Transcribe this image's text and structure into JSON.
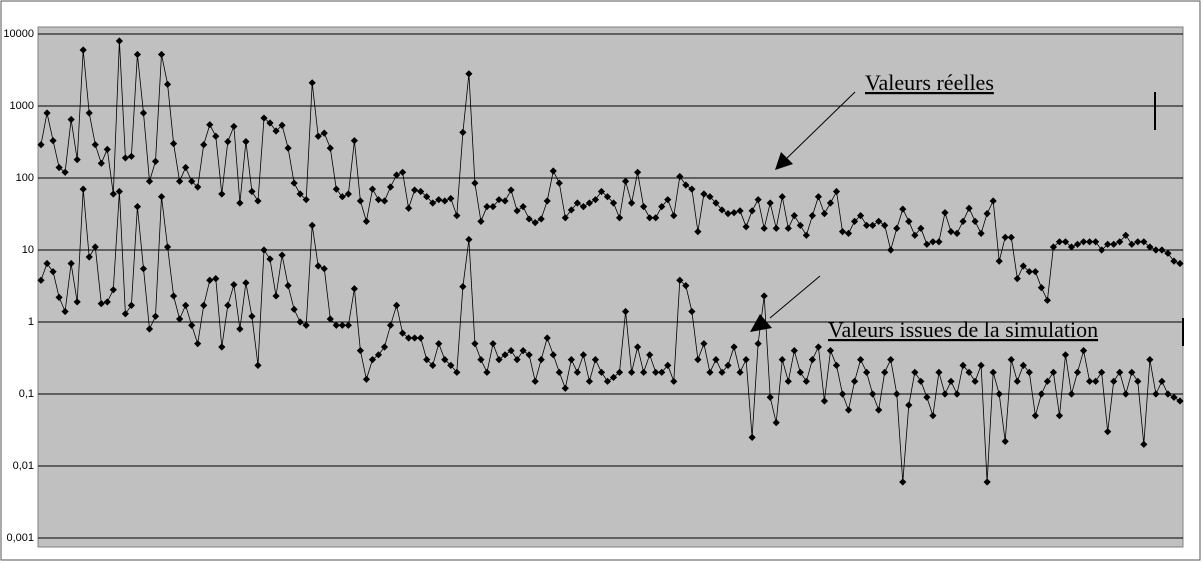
{
  "chart_data": {
    "type": "line",
    "log_scale": true,
    "grid": true,
    "ylim": [
      0.001,
      10000
    ],
    "yticks": [
      10000,
      1000,
      100,
      10,
      1,
      {
        "value": 0.1,
        "label": "0,1"
      },
      {
        "value": 0.01,
        "label": "0,01"
      },
      {
        "value": 0.001,
        "label": "0,001"
      }
    ],
    "annotations": [
      "Valeurs réelles",
      "Valeurs issues de la simulation"
    ],
    "series": [
      {
        "color": "#000000",
        "values": [
          290,
          800,
          330,
          140,
          120,
          650,
          180,
          6000,
          800,
          290,
          160,
          250,
          60,
          8000,
          190,
          200,
          5200,
          800,
          90,
          170,
          5200,
          2000,
          300,
          90,
          140,
          90,
          75,
          290,
          550,
          380,
          60,
          320,
          520,
          45,
          320,
          65,
          48,
          680,
          580,
          450,
          540,
          260,
          85,
          60,
          50,
          2100,
          380,
          420,
          260,
          70,
          55,
          60,
          330,
          48,
          25,
          70,
          50,
          48,
          75,
          110,
          120,
          38,
          68,
          65,
          55,
          45,
          50,
          48,
          52,
          30,
          430,
          2800,
          85,
          25,
          40,
          40,
          50,
          48,
          68,
          35,
          40,
          27,
          24,
          27,
          48,
          125,
          85,
          28,
          36,
          45,
          40,
          45,
          50,
          65,
          55,
          45,
          28,
          90,
          45,
          120,
          40,
          28,
          28,
          40,
          50,
          30,
          105,
          80,
          70,
          18,
          60,
          55,
          45,
          36,
          32,
          33,
          35,
          21,
          35,
          50,
          20,
          45,
          20,
          55,
          20,
          30,
          22,
          16,
          30,
          55,
          32,
          45,
          65,
          18,
          17,
          25,
          30,
          22,
          22,
          25,
          22,
          10,
          20,
          37,
          25,
          16,
          20,
          12,
          13,
          13,
          33,
          18,
          17,
          25,
          38,
          25,
          17,
          32,
          48,
          7,
          15,
          15,
          4,
          6,
          5,
          5,
          3,
          2,
          11,
          13,
          13,
          11,
          12,
          13,
          13,
          13,
          10,
          12,
          12,
          13,
          16,
          12,
          13,
          13,
          11,
          10,
          10,
          9,
          7,
          6.5
        ]
      },
      {
        "color": "#000000",
        "values": [
          3.8,
          6.5,
          5,
          2.2,
          1.4,
          6.5,
          1.9,
          70,
          8,
          11,
          1.8,
          1.9,
          2.8,
          65,
          1.3,
          1.7,
          40,
          5.5,
          0.8,
          1.2,
          55,
          11,
          2.3,
          1.1,
          1.7,
          0.9,
          0.5,
          1.7,
          3.8,
          4,
          0.45,
          1.7,
          3.3,
          0.8,
          3.5,
          1.2,
          0.25,
          10,
          7.5,
          2.3,
          8.5,
          3.2,
          1.5,
          1,
          0.9,
          22,
          6,
          5.5,
          1.1,
          0.9,
          0.9,
          0.9,
          2.9,
          0.4,
          0.16,
          0.3,
          0.35,
          0.45,
          0.9,
          1.7,
          0.7,
          0.6,
          0.6,
          0.6,
          0.3,
          0.25,
          0.5,
          0.3,
          0.25,
          0.2,
          3.1,
          14,
          0.5,
          0.3,
          0.2,
          0.5,
          0.3,
          0.35,
          0.4,
          0.3,
          0.4,
          0.35,
          0.15,
          0.3,
          0.6,
          0.35,
          0.2,
          0.12,
          0.3,
          0.2,
          0.35,
          0.15,
          0.3,
          0.2,
          0.15,
          0.17,
          0.2,
          1.4,
          0.2,
          0.45,
          0.2,
          0.35,
          0.2,
          0.2,
          0.25,
          0.15,
          3.8,
          3.2,
          1.4,
          0.3,
          0.5,
          0.2,
          0.3,
          0.2,
          0.25,
          0.45,
          0.2,
          0.3,
          0.025,
          0.5,
          2.3,
          0.09,
          0.04,
          0.3,
          0.15,
          0.4,
          0.2,
          0.15,
          0.3,
          0.45,
          0.08,
          0.4,
          0.25,
          0.1,
          0.06,
          0.15,
          0.3,
          0.2,
          0.1,
          0.06,
          0.2,
          0.3,
          0.1,
          0.006,
          0.07,
          0.2,
          0.15,
          0.09,
          0.05,
          0.2,
          0.1,
          0.15,
          0.1,
          0.25,
          0.2,
          0.15,
          0.25,
          0.006,
          0.2,
          0.1,
          0.022,
          0.3,
          0.15,
          0.25,
          0.2,
          0.05,
          0.1,
          0.15,
          0.2,
          0.05,
          0.35,
          0.1,
          0.2,
          0.4,
          0.15,
          0.15,
          0.2,
          0.03,
          0.15,
          0.2,
          0.1,
          0.2,
          0.15,
          0.02,
          0.3,
          0.1,
          0.15,
          0.1,
          0.09,
          0.08
        ]
      }
    ]
  }
}
